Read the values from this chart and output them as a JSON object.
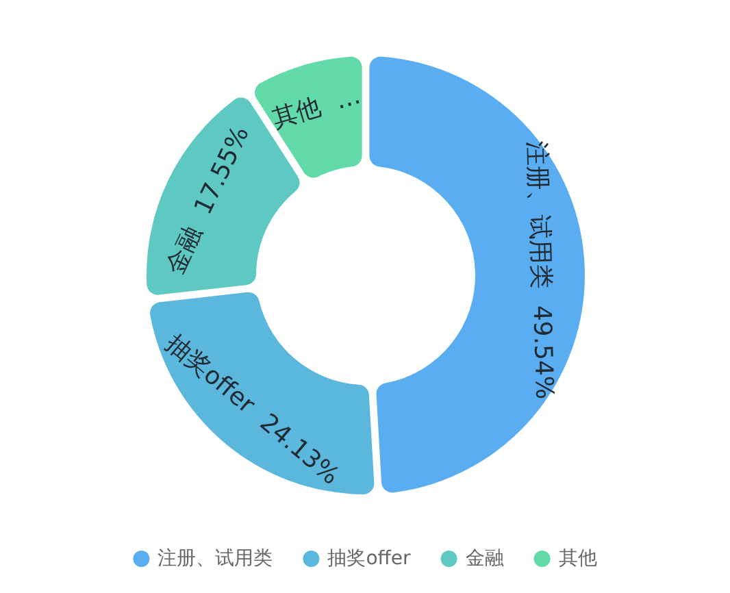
{
  "chart_data": {
    "type": "donut",
    "categories": [
      "注册、试用类",
      "抽奖offer",
      "金融",
      "其他"
    ],
    "values": [
      49.54,
      24.13,
      17.55,
      8.78
    ],
    "colors": [
      "#5badf1",
      "#5bb7dc",
      "#5ec9c2",
      "#61d9a9"
    ],
    "value_labels": [
      "49.54%",
      "24.13%",
      "17.55%",
      "…"
    ],
    "legend": "bottom"
  }
}
